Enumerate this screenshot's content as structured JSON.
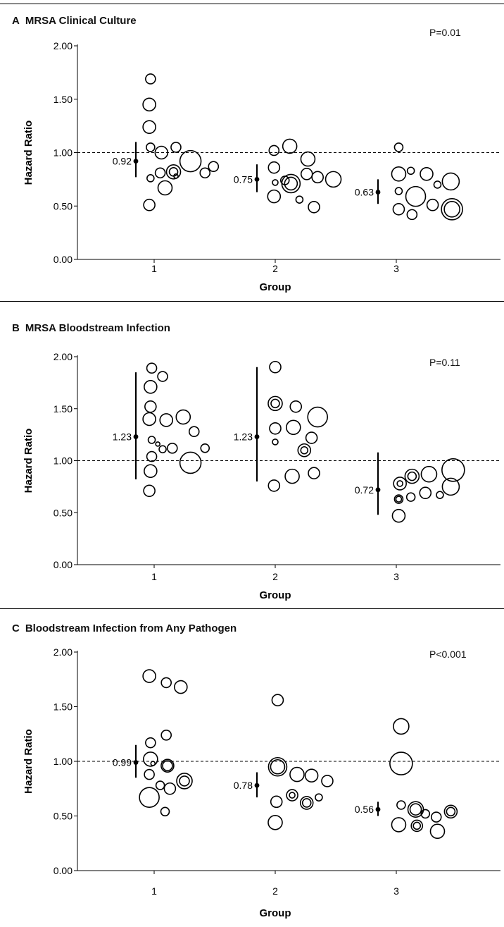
{
  "chart_data": [
    {
      "type": "scatter",
      "letter": "A",
      "title": "MRSA Clinical Culture",
      "xlabel": "Group",
      "ylabel": "Hazard Ratio",
      "ylim": [
        0,
        2
      ],
      "yticks": [
        "0.00",
        "0.50",
        "1.00",
        "1.50",
        "2.00"
      ],
      "categories": [
        "1",
        "2",
        "3"
      ],
      "reference_line": 1.0,
      "p_value": "P=0.01",
      "summary": [
        {
          "group": "1",
          "estimate": 0.92,
          "label": "0.92",
          "ci": [
            0.77,
            1.1
          ]
        },
        {
          "group": "2",
          "estimate": 0.75,
          "label": "0.75",
          "ci": [
            0.63,
            0.89
          ]
        },
        {
          "group": "3",
          "estimate": 0.63,
          "label": "0.63",
          "ci": [
            0.52,
            0.75
          ]
        }
      ],
      "points": [
        {
          "group": "1",
          "x": 0.97,
          "y": 1.69,
          "s": 7
        },
        {
          "group": "1",
          "x": 0.96,
          "y": 1.45,
          "s": 9
        },
        {
          "group": "1",
          "x": 0.96,
          "y": 1.24,
          "s": 9
        },
        {
          "group": "1",
          "x": 0.97,
          "y": 1.05,
          "s": 6
        },
        {
          "group": "1",
          "x": 1.06,
          "y": 1.0,
          "s": 9
        },
        {
          "group": "1",
          "x": 1.18,
          "y": 1.05,
          "s": 7
        },
        {
          "group": "1",
          "x": 0.97,
          "y": 0.76,
          "s": 5
        },
        {
          "group": "1",
          "x": 1.05,
          "y": 0.81,
          "s": 7
        },
        {
          "group": "1",
          "x": 1.16,
          "y": 0.82,
          "s": 10,
          "ring": 6
        },
        {
          "group": "1",
          "x": 1.18,
          "y": 0.78,
          "s": 3
        },
        {
          "group": "1",
          "x": 1.3,
          "y": 0.92,
          "s": 15
        },
        {
          "group": "1",
          "x": 1.42,
          "y": 0.81,
          "s": 7
        },
        {
          "group": "1",
          "x": 1.49,
          "y": 0.87,
          "s": 7
        },
        {
          "group": "1",
          "x": 1.09,
          "y": 0.67,
          "s": 10
        },
        {
          "group": "1",
          "x": 0.96,
          "y": 0.51,
          "s": 8
        },
        {
          "group": "2",
          "x": 1.99,
          "y": 1.02,
          "s": 7
        },
        {
          "group": "2",
          "x": 2.12,
          "y": 1.06,
          "s": 10
        },
        {
          "group": "2",
          "x": 2.27,
          "y": 0.94,
          "s": 10
        },
        {
          "group": "2",
          "x": 1.99,
          "y": 0.86,
          "s": 8
        },
        {
          "group": "2",
          "x": 2.0,
          "y": 0.72,
          "s": 4
        },
        {
          "group": "2",
          "x": 2.08,
          "y": 0.74,
          "s": 6
        },
        {
          "group": "2",
          "x": 2.13,
          "y": 0.71,
          "s": 13,
          "ring": 9
        },
        {
          "group": "2",
          "x": 2.26,
          "y": 0.8,
          "s": 8
        },
        {
          "group": "2",
          "x": 2.35,
          "y": 0.77,
          "s": 8
        },
        {
          "group": "2",
          "x": 2.48,
          "y": 0.75,
          "s": 11
        },
        {
          "group": "2",
          "x": 1.99,
          "y": 0.59,
          "s": 9
        },
        {
          "group": "2",
          "x": 2.2,
          "y": 0.56,
          "s": 5
        },
        {
          "group": "2",
          "x": 2.32,
          "y": 0.49,
          "s": 8
        },
        {
          "group": "3",
          "x": 3.02,
          "y": 1.05,
          "s": 6
        },
        {
          "group": "3",
          "x": 3.02,
          "y": 0.8,
          "s": 10
        },
        {
          "group": "3",
          "x": 3.12,
          "y": 0.83,
          "s": 5
        },
        {
          "group": "3",
          "x": 3.25,
          "y": 0.8,
          "s": 9
        },
        {
          "group": "3",
          "x": 3.34,
          "y": 0.7,
          "s": 5
        },
        {
          "group": "3",
          "x": 3.45,
          "y": 0.73,
          "s": 12
        },
        {
          "group": "3",
          "x": 3.02,
          "y": 0.64,
          "s": 5
        },
        {
          "group": "3",
          "x": 3.16,
          "y": 0.59,
          "s": 14
        },
        {
          "group": "3",
          "x": 3.3,
          "y": 0.51,
          "s": 8
        },
        {
          "group": "3",
          "x": 3.02,
          "y": 0.47,
          "s": 8
        },
        {
          "group": "3",
          "x": 3.13,
          "y": 0.42,
          "s": 7
        },
        {
          "group": "3",
          "x": 3.46,
          "y": 0.47,
          "s": 15,
          "ring": 11
        }
      ]
    },
    {
      "type": "scatter",
      "letter": "B",
      "title": "MRSA Bloodstream Infection",
      "xlabel": "Group",
      "ylabel": "Hazard Ratio",
      "ylim": [
        0,
        2
      ],
      "yticks": [
        "0.00",
        "0.50",
        "1.00",
        "1.50",
        "2.00"
      ],
      "categories": [
        "1",
        "2",
        "3"
      ],
      "reference_line": 1.0,
      "p_value": "P=0.11",
      "summary": [
        {
          "group": "1",
          "estimate": 1.23,
          "label": "1.23",
          "ci": [
            0.82,
            1.85
          ]
        },
        {
          "group": "2",
          "estimate": 1.23,
          "label": "1.23",
          "ci": [
            0.8,
            1.9
          ]
        },
        {
          "group": "3",
          "estimate": 0.72,
          "label": "0.72",
          "ci": [
            0.48,
            1.08
          ]
        }
      ],
      "points": [
        {
          "group": "1",
          "x": 0.98,
          "y": 1.89,
          "s": 7
        },
        {
          "group": "1",
          "x": 1.07,
          "y": 1.81,
          "s": 7
        },
        {
          "group": "1",
          "x": 0.97,
          "y": 1.71,
          "s": 9
        },
        {
          "group": "1",
          "x": 0.97,
          "y": 1.52,
          "s": 8
        },
        {
          "group": "1",
          "x": 0.96,
          "y": 1.4,
          "s": 9
        },
        {
          "group": "1",
          "x": 1.1,
          "y": 1.39,
          "s": 9
        },
        {
          "group": "1",
          "x": 1.24,
          "y": 1.42,
          "s": 10
        },
        {
          "group": "1",
          "x": 0.98,
          "y": 1.2,
          "s": 5
        },
        {
          "group": "1",
          "x": 1.03,
          "y": 1.16,
          "s": 3
        },
        {
          "group": "1",
          "x": 1.07,
          "y": 1.11,
          "s": 5
        },
        {
          "group": "1",
          "x": 1.15,
          "y": 1.12,
          "s": 7
        },
        {
          "group": "1",
          "x": 1.33,
          "y": 1.28,
          "s": 7
        },
        {
          "group": "1",
          "x": 1.42,
          "y": 1.12,
          "s": 6
        },
        {
          "group": "1",
          "x": 0.98,
          "y": 1.04,
          "s": 7
        },
        {
          "group": "1",
          "x": 0.97,
          "y": 0.9,
          "s": 9
        },
        {
          "group": "1",
          "x": 1.3,
          "y": 0.98,
          "s": 15
        },
        {
          "group": "1",
          "x": 0.96,
          "y": 0.71,
          "s": 8
        },
        {
          "group": "2",
          "x": 2.0,
          "y": 1.9,
          "s": 8
        },
        {
          "group": "2",
          "x": 2.0,
          "y": 1.55,
          "s": 10,
          "ring": 6
        },
        {
          "group": "2",
          "x": 2.17,
          "y": 1.52,
          "s": 8
        },
        {
          "group": "2",
          "x": 2.0,
          "y": 1.31,
          "s": 8
        },
        {
          "group": "2",
          "x": 2.15,
          "y": 1.32,
          "s": 10
        },
        {
          "group": "2",
          "x": 2.35,
          "y": 1.42,
          "s": 14
        },
        {
          "group": "2",
          "x": 2.3,
          "y": 1.22,
          "s": 8
        },
        {
          "group": "2",
          "x": 2.0,
          "y": 1.18,
          "s": 4
        },
        {
          "group": "2",
          "x": 2.24,
          "y": 1.1,
          "s": 9,
          "ring": 5
        },
        {
          "group": "2",
          "x": 2.14,
          "y": 0.85,
          "s": 10
        },
        {
          "group": "2",
          "x": 2.32,
          "y": 0.88,
          "s": 8
        },
        {
          "group": "2",
          "x": 1.99,
          "y": 0.76,
          "s": 8
        },
        {
          "group": "3",
          "x": 3.03,
          "y": 0.78,
          "s": 9,
          "ring": 4
        },
        {
          "group": "3",
          "x": 3.13,
          "y": 0.85,
          "s": 10,
          "ring": 6
        },
        {
          "group": "3",
          "x": 3.27,
          "y": 0.87,
          "s": 11
        },
        {
          "group": "3",
          "x": 3.47,
          "y": 0.91,
          "s": 16
        },
        {
          "group": "3",
          "x": 3.02,
          "y": 0.63,
          "s": 6,
          "ring": 4
        },
        {
          "group": "3",
          "x": 3.12,
          "y": 0.65,
          "s": 6
        },
        {
          "group": "3",
          "x": 3.24,
          "y": 0.69,
          "s": 8
        },
        {
          "group": "3",
          "x": 3.36,
          "y": 0.67,
          "s": 5
        },
        {
          "group": "3",
          "x": 3.45,
          "y": 0.75,
          "s": 12
        },
        {
          "group": "3",
          "x": 3.02,
          "y": 0.47,
          "s": 9
        }
      ]
    },
    {
      "type": "scatter",
      "letter": "C",
      "title": "Bloodstream Infection from Any Pathogen",
      "xlabel": "Group",
      "ylabel": "Hazard Ratio",
      "ylim": [
        0,
        2
      ],
      "yticks": [
        "0.00",
        "0.50",
        "1.00",
        "1.50",
        "2.00"
      ],
      "categories": [
        "1",
        "2",
        "3"
      ],
      "reference_line": 1.0,
      "p_value": "P<0.001",
      "summary": [
        {
          "group": "1",
          "estimate": 0.99,
          "label": "0.99",
          "ci": [
            0.85,
            1.15
          ]
        },
        {
          "group": "2",
          "estimate": 0.78,
          "label": "0.78",
          "ci": [
            0.67,
            0.9
          ]
        },
        {
          "group": "3",
          "estimate": 0.56,
          "label": "0.56",
          "ci": [
            0.5,
            0.63
          ]
        }
      ],
      "points": [
        {
          "group": "1",
          "x": 0.96,
          "y": 1.78,
          "s": 9
        },
        {
          "group": "1",
          "x": 1.1,
          "y": 1.72,
          "s": 7
        },
        {
          "group": "1",
          "x": 1.22,
          "y": 1.68,
          "s": 9
        },
        {
          "group": "1",
          "x": 0.97,
          "y": 1.17,
          "s": 7
        },
        {
          "group": "1",
          "x": 1.1,
          "y": 1.24,
          "s": 7
        },
        {
          "group": "1",
          "x": 0.97,
          "y": 1.02,
          "s": 10
        },
        {
          "group": "1",
          "x": 0.99,
          "y": 0.98,
          "s": 3
        },
        {
          "group": "1",
          "x": 1.11,
          "y": 0.96,
          "s": 9,
          "ring": 7
        },
        {
          "group": "1",
          "x": 0.96,
          "y": 0.88,
          "s": 7
        },
        {
          "group": "1",
          "x": 1.05,
          "y": 0.78,
          "s": 6
        },
        {
          "group": "1",
          "x": 1.13,
          "y": 0.75,
          "s": 8
        },
        {
          "group": "1",
          "x": 1.25,
          "y": 0.82,
          "s": 11,
          "ring": 7
        },
        {
          "group": "1",
          "x": 0.96,
          "y": 0.67,
          "s": 14
        },
        {
          "group": "1",
          "x": 1.09,
          "y": 0.54,
          "s": 6
        },
        {
          "group": "2",
          "x": 2.02,
          "y": 1.56,
          "s": 8
        },
        {
          "group": "2",
          "x": 2.02,
          "y": 0.95,
          "s": 13,
          "ring": 10
        },
        {
          "group": "2",
          "x": 2.18,
          "y": 0.88,
          "s": 10
        },
        {
          "group": "2",
          "x": 2.3,
          "y": 0.87,
          "s": 9
        },
        {
          "group": "2",
          "x": 2.43,
          "y": 0.82,
          "s": 8
        },
        {
          "group": "2",
          "x": 2.14,
          "y": 0.69,
          "s": 8,
          "ring": 4
        },
        {
          "group": "2",
          "x": 2.26,
          "y": 0.62,
          "s": 9,
          "ring": 6
        },
        {
          "group": "2",
          "x": 2.36,
          "y": 0.67,
          "s": 5
        },
        {
          "group": "2",
          "x": 2.01,
          "y": 0.63,
          "s": 8
        },
        {
          "group": "2",
          "x": 2.0,
          "y": 0.44,
          "s": 10
        },
        {
          "group": "3",
          "x": 3.04,
          "y": 1.32,
          "s": 11
        },
        {
          "group": "3",
          "x": 3.04,
          "y": 0.98,
          "s": 16
        },
        {
          "group": "3",
          "x": 3.04,
          "y": 0.6,
          "s": 6
        },
        {
          "group": "3",
          "x": 3.16,
          "y": 0.56,
          "s": 11,
          "ring": 8
        },
        {
          "group": "3",
          "x": 3.17,
          "y": 0.41,
          "s": 8,
          "ring": 5
        },
        {
          "group": "3",
          "x": 3.24,
          "y": 0.52,
          "s": 6
        },
        {
          "group": "3",
          "x": 3.33,
          "y": 0.49,
          "s": 7
        },
        {
          "group": "3",
          "x": 3.45,
          "y": 0.54,
          "s": 9,
          "ring": 6
        },
        {
          "group": "3",
          "x": 3.02,
          "y": 0.42,
          "s": 10
        },
        {
          "group": "3",
          "x": 3.34,
          "y": 0.36,
          "s": 10
        }
      ]
    }
  ]
}
